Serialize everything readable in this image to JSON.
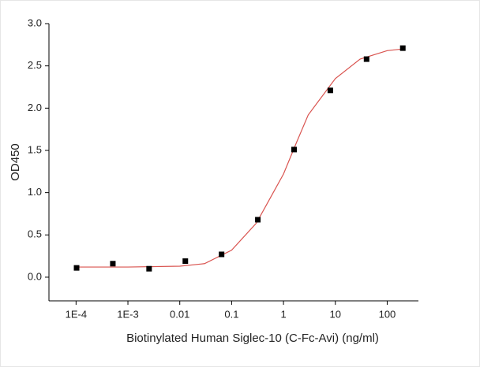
{
  "chart_data": {
    "type": "scatter",
    "x_label": "Biotinylated Human Siglec-10 (C-Fc-Avi) (ng/ml)",
    "y_label": "OD450",
    "x_scale": "log",
    "xlim": [
      3e-05,
      400
    ],
    "ylim": [
      -0.28,
      3.0
    ],
    "xticks": [
      {
        "value": 0.0001,
        "label": "1E-4"
      },
      {
        "value": 0.001,
        "label": "1E-3"
      },
      0.01,
      0.1,
      1,
      10,
      100
    ],
    "yticks": [
      {
        "value": 0,
        "label": "0.0"
      },
      0.5,
      {
        "value": 1,
        "label": "1.0"
      },
      1.5,
      {
        "value": 2,
        "label": "2.0"
      },
      2.5,
      {
        "value": 3,
        "label": "3.0"
      }
    ],
    "grid": false,
    "series": [
      {
        "style": "marker",
        "color": "#000000",
        "x": [
          0.0001024,
          0.000512,
          0.00256,
          0.0128,
          0.064,
          0.32,
          1.6,
          8,
          40,
          200
        ],
        "values": [
          0.11,
          0.16,
          0.1,
          0.19,
          0.27,
          0.68,
          1.51,
          2.21,
          2.58,
          2.71
        ]
      },
      {
        "style": "line",
        "color": "#d9534f",
        "x": [
          0.0001,
          0.001,
          0.01,
          0.03,
          0.1,
          0.3,
          1,
          1.8,
          3,
          10,
          30,
          100,
          200
        ],
        "values": [
          0.12,
          0.12,
          0.13,
          0.16,
          0.32,
          0.64,
          1.22,
          1.6,
          1.92,
          2.35,
          2.58,
          2.68,
          2.7
        ]
      }
    ]
  }
}
